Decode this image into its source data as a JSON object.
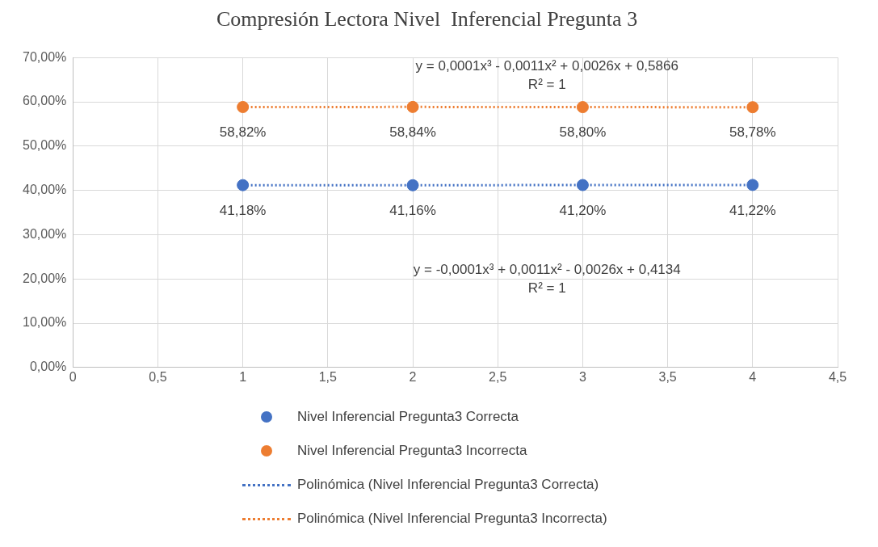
{
  "chart_data": {
    "type": "scatter",
    "title": "Compresión Lectora Nivel  Inferencial Pregunta 3",
    "x": [
      1,
      2,
      3,
      4
    ],
    "series": [
      {
        "name": "Nivel Inferencial Pregunta3 Correcta",
        "color": "#4472c4",
        "values": [
          41.18,
          41.16,
          41.2,
          41.22
        ],
        "value_labels": [
          "41,18%",
          "41,16%",
          "41,20%",
          "41,22%"
        ],
        "marker": "circle"
      },
      {
        "name": "Nivel Inferencial Pregunta3 Incorrecta",
        "color": "#ed7d31",
        "values": [
          58.82,
          58.84,
          58.8,
          58.78
        ],
        "value_labels": [
          "58,82%",
          "58,84%",
          "58,80%",
          "58,78%"
        ],
        "marker": "circle"
      },
      {
        "name": "Polinómica (Nivel Inferencial Pregunta3 Correcta)",
        "type": "line",
        "color": "#4472c4",
        "x": [
          1,
          2,
          3,
          4
        ],
        "values": [
          41.18,
          41.16,
          41.2,
          41.22
        ],
        "line_style": "dotted",
        "marker": "none"
      },
      {
        "name": "Polinómica (Nivel Inferencial Pregunta3 Incorrecta)",
        "type": "line",
        "color": "#ed7d31",
        "x": [
          1,
          2,
          3,
          4
        ],
        "values": [
          58.82,
          58.84,
          58.8,
          58.78
        ],
        "line_style": "dotted",
        "marker": "none"
      }
    ],
    "xlim": [
      0,
      4.5
    ],
    "xticks": [
      0,
      {
        "value": 0.5,
        "label": "0,5"
      },
      1,
      {
        "value": 1.5,
        "label": "1,5"
      },
      2,
      {
        "value": 2.5,
        "label": "2,5"
      },
      3,
      {
        "value": 3.5,
        "label": "3,5"
      },
      4,
      {
        "value": 4.5,
        "label": "4,5"
      }
    ],
    "ylim": [
      0,
      70
    ],
    "yticks": [
      {
        "value": 0,
        "label": "0,00%"
      },
      {
        "value": 10,
        "label": "10,00%"
      },
      {
        "value": 20,
        "label": "20,00%"
      },
      {
        "value": 30,
        "label": "30,00%"
      },
      {
        "value": 40,
        "label": "40,00%"
      },
      {
        "value": 50,
        "label": "50,00%"
      },
      {
        "value": 60,
        "label": "60,00%"
      },
      {
        "value": 70,
        "label": "70,00%"
      }
    ],
    "annotations": [
      "y = 0,0001x³ - 0,0011x² + 0,0026x + 0,5866",
      "R² = 1",
      "y = -0,0001x³ + 0,0011x² - 0,0026x + 0,4134",
      "R² = 1"
    ],
    "grid": true,
    "legend": "bottom"
  }
}
